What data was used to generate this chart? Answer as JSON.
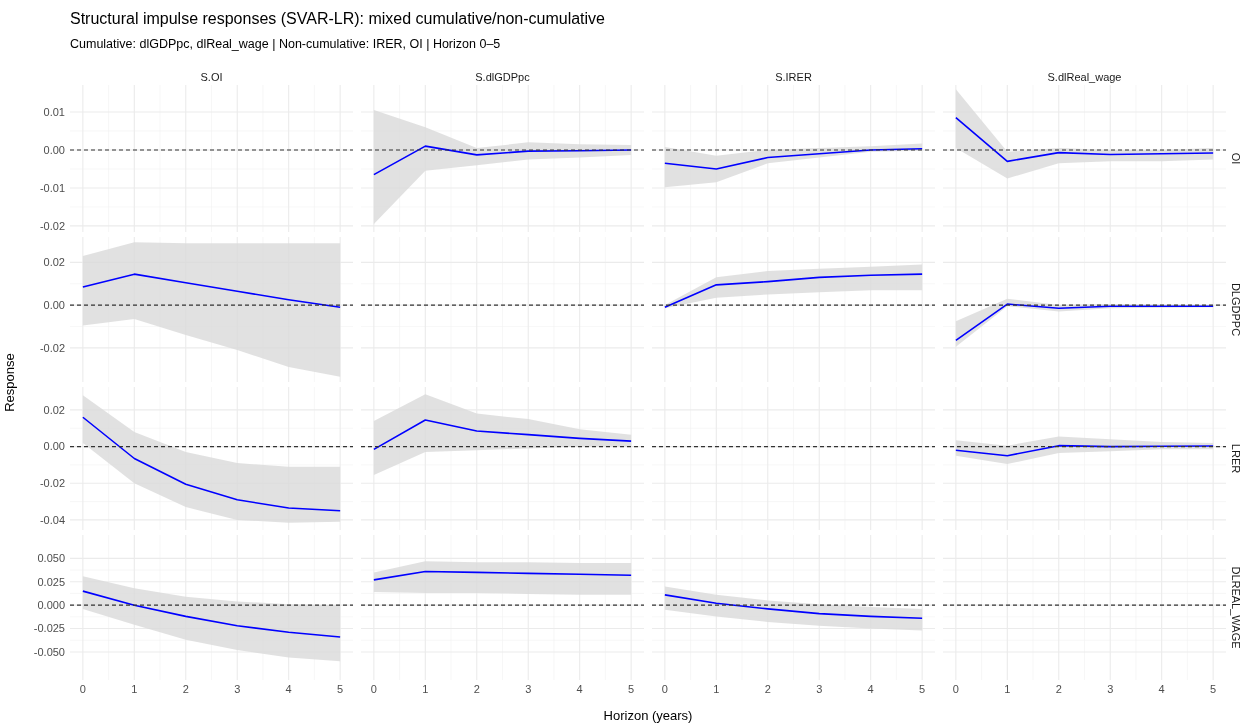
{
  "chart_data": [
    {
      "type": "line",
      "x2label": "S.OI",
      "xlim": [
        -0.25,
        5.25
      ],
      "xticks": [
        0,
        1,
        2,
        3,
        4,
        5
      ],
      "ylim": [
        -0.0216,
        0.0171
      ],
      "yticks": [
        {
          "value": -0.02,
          "label": "-0.02"
        },
        {
          "value": -0.01,
          "label": "-0.01"
        },
        {
          "value": 0,
          "label": "0.00"
        },
        {
          "value": 0.01,
          "label": "0.01"
        }
      ],
      "grid": true,
      "tick_labels": "y",
      "ref_lines": [
        {
          "axis": "y",
          "value": 0,
          "line_style": "dashed",
          "color": "#333333"
        }
      ],
      "title": "Structural impulse responses (SVAR-LR): mixed cumulative/non-cumulative",
      "subtitle": "Cumulative: dlGDPpc, dlReal_wage | Non-cumulative: IRER, OI | Horizon 0–5"
    },
    {
      "type": "line",
      "x2label": "S.dlGDPpc",
      "x": [
        0,
        1,
        2,
        3,
        4,
        5
      ],
      "xlim": [
        -0.25,
        5.25
      ],
      "xticks": [
        0,
        1,
        2,
        3,
        4,
        5
      ],
      "ylim": [
        -0.0216,
        0.0171
      ],
      "yticks": [
        -0.02,
        -0.01,
        0,
        0.01
      ],
      "grid": true,
      "tick_labels": false,
      "ref_lines": [
        {
          "axis": "y",
          "value": 0,
          "line_style": "dashed",
          "color": "#333333"
        }
      ],
      "series": [
        {
          "color": "#0000ff",
          "values": [
            -0.0065,
            0.001,
            -0.0013,
            -0.0003,
            -0.0002,
            0
          ],
          "lower": [
            -0.0195,
            -0.0055,
            -0.004,
            -0.0025,
            -0.002,
            -0.0013
          ],
          "upper": [
            0.0105,
            0.006,
            0.0005,
            0.002,
            0.0015,
            0.0013
          ]
        }
      ]
    },
    {
      "type": "line",
      "x2label": "S.IRER",
      "x": [
        0,
        1,
        2,
        3,
        4,
        5
      ],
      "xlim": [
        -0.25,
        5.25
      ],
      "xticks": [
        0,
        1,
        2,
        3,
        4,
        5
      ],
      "ylim": [
        -0.0216,
        0.0171
      ],
      "yticks": [
        -0.02,
        -0.01,
        0,
        0.01
      ],
      "grid": true,
      "tick_labels": false,
      "ref_lines": [
        {
          "axis": "y",
          "value": 0,
          "line_style": "dashed",
          "color": "#333333"
        }
      ],
      "series": [
        {
          "color": "#0000ff",
          "values": [
            -0.0035,
            -0.005,
            -0.002,
            -0.001,
            0,
            0.0003
          ],
          "lower": [
            -0.0098,
            -0.0085,
            -0.0035,
            -0.002,
            -0.0005,
            -0.0002
          ],
          "upper": [
            0.0008,
            -0.0015,
            0,
            0.0005,
            0.001,
            0.0017
          ]
        }
      ]
    },
    {
      "type": "line",
      "x2label": "S.dlReal_wage",
      "y2label": "OI",
      "x": [
        0,
        1,
        2,
        3,
        4,
        5
      ],
      "xlim": [
        -0.25,
        5.25
      ],
      "xticks": [
        0,
        1,
        2,
        3,
        4,
        5
      ],
      "ylim": [
        -0.0216,
        0.0171
      ],
      "yticks": [
        -0.02,
        -0.01,
        0,
        0.01
      ],
      "grid": true,
      "tick_labels": false,
      "ref_lines": [
        {
          "axis": "y",
          "value": 0,
          "line_style": "dashed",
          "color": "#333333"
        }
      ],
      "series": [
        {
          "color": "#0000ff",
          "values": [
            0.0085,
            -0.003,
            -0.0007,
            -0.0012,
            -0.001,
            -0.0008
          ],
          "lower": [
            0.0005,
            -0.0075,
            -0.0035,
            -0.003,
            -0.003,
            -0.0025
          ],
          "upper": [
            0.016,
            -0.0005,
            0.0005,
            0,
            0,
            0.0005
          ]
        }
      ]
    },
    {
      "type": "line",
      "x": [
        0,
        1,
        2,
        3,
        4,
        5
      ],
      "xlim": [
        -0.25,
        5.25
      ],
      "xticks": [
        0,
        1,
        2,
        3,
        4,
        5
      ],
      "ylim": [
        -0.036,
        0.0319
      ],
      "yticks": [
        {
          "value": -0.02,
          "label": "-0.02"
        },
        {
          "value": 0,
          "label": "0.00"
        },
        {
          "value": 0.02,
          "label": "0.02"
        }
      ],
      "grid": true,
      "tick_labels": "y",
      "ref_lines": [
        {
          "axis": "y",
          "value": 0,
          "line_style": "dashed",
          "color": "#333333"
        }
      ],
      "series": [
        {
          "color": "#0000ff",
          "values": [
            0.0085,
            0.0145,
            0.0105,
            0.0065,
            0.0025,
            -0.001
          ],
          "lower": [
            -0.0095,
            -0.0065,
            -0.014,
            -0.021,
            -0.029,
            -0.0335
          ],
          "upper": [
            0.023,
            0.0295,
            0.029,
            0.029,
            0.029,
            0.029
          ]
        }
      ]
    },
    {
      "type": "line",
      "xlim": [
        -0.25,
        5.25
      ],
      "xticks": [
        0,
        1,
        2,
        3,
        4,
        5
      ],
      "ylim": [
        -0.036,
        0.0319
      ],
      "yticks": [
        -0.02,
        0,
        0.02
      ],
      "grid": true,
      "tick_labels": false,
      "ref_lines": [
        {
          "axis": "y",
          "value": 0,
          "line_style": "dashed",
          "color": "#333333"
        }
      ]
    },
    {
      "type": "line",
      "x": [
        0,
        1,
        2,
        3,
        4,
        5
      ],
      "xlim": [
        -0.25,
        5.25
      ],
      "xticks": [
        0,
        1,
        2,
        3,
        4,
        5
      ],
      "ylim": [
        -0.036,
        0.0319
      ],
      "yticks": [
        -0.02,
        0,
        0.02
      ],
      "grid": true,
      "tick_labels": false,
      "ref_lines": [
        {
          "axis": "y",
          "value": 0,
          "line_style": "dashed",
          "color": "#333333"
        }
      ],
      "series": [
        {
          "color": "#0000ff",
          "values": [
            -0.001,
            0.0095,
            0.011,
            0.013,
            0.014,
            0.0145
          ],
          "lower": [
            -0.0015,
            0.0035,
            0.005,
            0.006,
            0.007,
            0.007
          ],
          "upper": [
            0,
            0.013,
            0.016,
            0.017,
            0.018,
            0.019
          ]
        }
      ]
    },
    {
      "type": "line",
      "y2label": "DLGDPPC",
      "x": [
        0,
        1,
        2,
        3,
        4,
        5
      ],
      "xlim": [
        -0.25,
        5.25
      ],
      "xticks": [
        0,
        1,
        2,
        3,
        4,
        5
      ],
      "ylim": [
        -0.036,
        0.0319
      ],
      "yticks": [
        -0.02,
        0,
        0.02
      ],
      "grid": true,
      "tick_labels": false,
      "ref_lines": [
        {
          "axis": "y",
          "value": 0,
          "line_style": "dashed",
          "color": "#333333"
        }
      ],
      "series": [
        {
          "color": "#0000ff",
          "values": [
            -0.0165,
            0.0005,
            -0.0015,
            -0.0005,
            -0.0005,
            -0.0005
          ],
          "lower": [
            -0.0195,
            -0.0005,
            -0.003,
            -0.0015,
            -0.0012,
            -0.001
          ],
          "upper": [
            -0.0075,
            0.003,
            0,
            0.0005,
            0.0003,
            0
          ]
        }
      ]
    },
    {
      "type": "line",
      "ylabel": "Response",
      "x": [
        0,
        1,
        2,
        3,
        4,
        5
      ],
      "xlim": [
        -0.25,
        5.25
      ],
      "xticks": [
        0,
        1,
        2,
        3,
        4,
        5
      ],
      "ylim": [
        -0.0455,
        0.0325
      ],
      "yticks": [
        {
          "value": -0.04,
          "label": "-0.04"
        },
        {
          "value": -0.02,
          "label": "-0.02"
        },
        {
          "value": 0,
          "label": "0.00"
        },
        {
          "value": 0.02,
          "label": "0.02"
        }
      ],
      "grid": true,
      "tick_labels": "y",
      "ref_lines": [
        {
          "axis": "y",
          "value": 0,
          "line_style": "dashed",
          "color": "#333333"
        }
      ],
      "series": [
        {
          "color": "#0000ff",
          "values": [
            0.016,
            -0.0065,
            -0.0205,
            -0.029,
            -0.0335,
            -0.035
          ],
          "lower": [
            0.002,
            -0.02,
            -0.033,
            -0.04,
            -0.0415,
            -0.041
          ],
          "upper": [
            0.028,
            0.008,
            -0.003,
            -0.009,
            -0.011,
            -0.011
          ]
        }
      ]
    },
    {
      "type": "line",
      "x": [
        0,
        1,
        2,
        3,
        4,
        5
      ],
      "xlim": [
        -0.25,
        5.25
      ],
      "xticks": [
        0,
        1,
        2,
        3,
        4,
        5
      ],
      "ylim": [
        -0.0455,
        0.0325
      ],
      "yticks": [
        -0.04,
        -0.02,
        0,
        0.02
      ],
      "grid": true,
      "tick_labels": false,
      "ref_lines": [
        {
          "axis": "y",
          "value": 0,
          "line_style": "dashed",
          "color": "#333333"
        }
      ],
      "series": [
        {
          "color": "#0000ff",
          "values": [
            -0.0015,
            0.0145,
            0.0085,
            0.0065,
            0.0045,
            0.003
          ],
          "lower": [
            -0.0155,
            -0.003,
            -0.002,
            -0.001,
            0,
            0
          ],
          "upper": [
            0.014,
            0.0285,
            0.018,
            0.015,
            0.0095,
            0.0065
          ]
        }
      ]
    },
    {
      "type": "line",
      "xlim": [
        -0.25,
        5.25
      ],
      "xticks": [
        0,
        1,
        2,
        3,
        4,
        5
      ],
      "ylim": [
        -0.0455,
        0.0325
      ],
      "yticks": [
        -0.04,
        -0.02,
        0,
        0.02
      ],
      "grid": true,
      "tick_labels": false,
      "ref_lines": [
        {
          "axis": "y",
          "value": 0,
          "line_style": "dashed",
          "color": "#333333"
        }
      ]
    },
    {
      "type": "line",
      "y2label": "LRER",
      "x": [
        0,
        1,
        2,
        3,
        4,
        5
      ],
      "xlim": [
        -0.25,
        5.25
      ],
      "xticks": [
        0,
        1,
        2,
        3,
        4,
        5
      ],
      "ylim": [
        -0.0455,
        0.0325
      ],
      "yticks": [
        -0.04,
        -0.02,
        0,
        0.02
      ],
      "grid": true,
      "tick_labels": false,
      "ref_lines": [
        {
          "axis": "y",
          "value": 0,
          "line_style": "dashed",
          "color": "#333333"
        }
      ],
      "series": [
        {
          "color": "#0000ff",
          "values": [
            -0.002,
            -0.005,
            0.0005,
            0,
            0.0002,
            0.0003
          ],
          "lower": [
            -0.005,
            -0.0095,
            -0.0035,
            -0.0025,
            -0.0015,
            -0.0015
          ],
          "upper": [
            0.0035,
            0.0005,
            0.0055,
            0.004,
            0.0025,
            0.002
          ]
        }
      ]
    },
    {
      "type": "line",
      "x": [
        0,
        1,
        2,
        3,
        4,
        5
      ],
      "xlim": [
        -0.25,
        5.25
      ],
      "xticks": [
        0,
        1,
        2,
        3,
        4,
        5
      ],
      "ylim": [
        -0.08,
        0.075
      ],
      "yticks": [
        {
          "value": -0.05,
          "label": "-0.050"
        },
        {
          "value": -0.025,
          "label": "-0.025"
        },
        {
          "value": 0,
          "label": "0.000"
        },
        {
          "value": 0.025,
          "label": "0.025"
        },
        {
          "value": 0.05,
          "label": "0.050"
        }
      ],
      "grid": true,
      "ref_lines": [
        {
          "axis": "y",
          "value": 0,
          "line_style": "dashed",
          "color": "#333333"
        }
      ],
      "series": [
        {
          "color": "#0000ff",
          "values": [
            0.015,
            0,
            -0.012,
            -0.022,
            -0.029,
            -0.034
          ],
          "lower": [
            -0.004,
            -0.021,
            -0.037,
            -0.048,
            -0.056,
            -0.06
          ],
          "upper": [
            0.031,
            0.018,
            0.009,
            0.004,
            0.001,
            0
          ]
        }
      ]
    },
    {
      "type": "line",
      "xlabel": "Horizon (years)",
      "x": [
        0,
        1,
        2,
        3,
        4,
        5
      ],
      "xlim": [
        -0.25,
        5.25
      ],
      "xticks": [
        0,
        1,
        2,
        3,
        4,
        5
      ],
      "ylim": [
        -0.08,
        0.075
      ],
      "yticks": [
        -0.05,
        -0.025,
        0,
        0.025,
        0.05
      ],
      "grid": true,
      "tick_labels": "x",
      "ref_lines": [
        {
          "axis": "y",
          "value": 0,
          "line_style": "dashed",
          "color": "#333333"
        }
      ],
      "series": [
        {
          "color": "#0000ff",
          "values": [
            0.027,
            0.036,
            0.035,
            0.034,
            0.033,
            0.032
          ],
          "lower": [
            0.014,
            0.013,
            0.013,
            0.012,
            0.011,
            0.011
          ],
          "upper": [
            0.035,
            0.047,
            0.046,
            0.046,
            0.045,
            0.045
          ]
        }
      ]
    },
    {
      "type": "line",
      "x": [
        0,
        1,
        2,
        3,
        4,
        5
      ],
      "xlim": [
        -0.25,
        5.25
      ],
      "xticks": [
        0,
        1,
        2,
        3,
        4,
        5
      ],
      "ylim": [
        -0.08,
        0.075
      ],
      "yticks": [
        -0.05,
        -0.025,
        0,
        0.025,
        0.05
      ],
      "grid": true,
      "tick_labels": "x",
      "ref_lines": [
        {
          "axis": "y",
          "value": 0,
          "line_style": "dashed",
          "color": "#333333"
        }
      ],
      "series": [
        {
          "color": "#0000ff",
          "values": [
            0.011,
            0.002,
            -0.004,
            -0.009,
            -0.012,
            -0.014
          ],
          "lower": [
            -0.005,
            -0.012,
            -0.018,
            -0.022,
            -0.025,
            -0.027
          ],
          "upper": [
            0.02,
            0.011,
            0.005,
            0.001,
            -0.002,
            -0.004
          ]
        }
      ]
    },
    {
      "type": "line",
      "y2label": "DLREAL_WAGE",
      "xlim": [
        -0.25,
        5.25
      ],
      "xticks": [
        0,
        1,
        2,
        3,
        4,
        5
      ],
      "ylim": [
        -0.08,
        0.075
      ],
      "yticks": [
        -0.05,
        -0.025,
        0,
        0.025,
        0.05
      ],
      "grid": true,
      "tick_labels": "x",
      "ref_lines": [
        {
          "axis": "y",
          "value": 0,
          "line_style": "dashed",
          "color": "#333333"
        }
      ]
    }
  ]
}
